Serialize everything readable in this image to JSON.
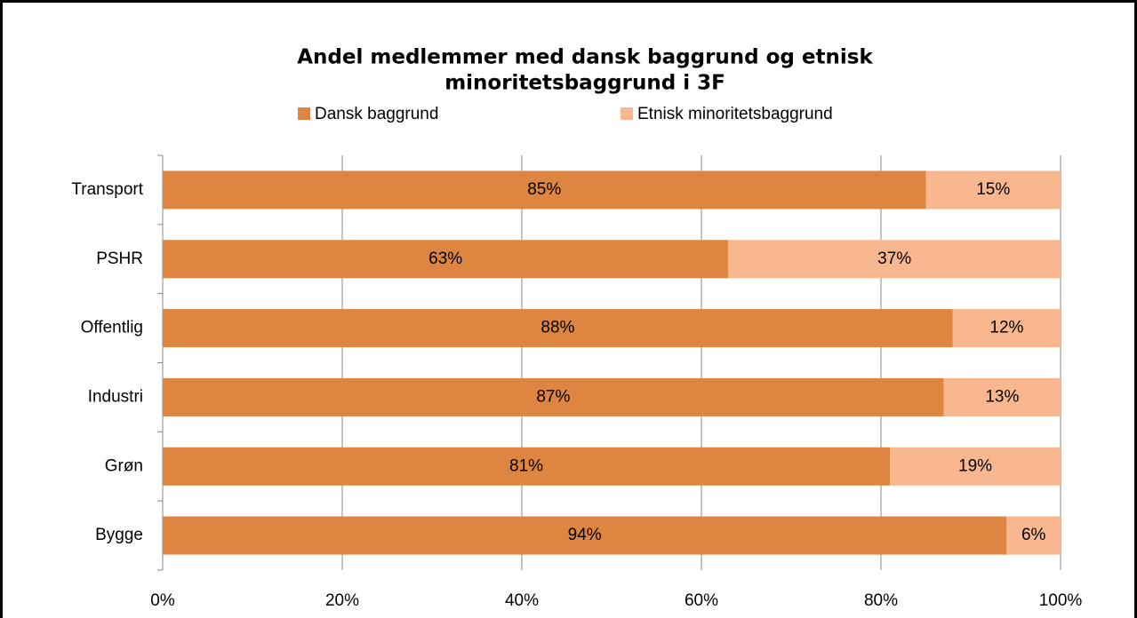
{
  "chart_data": {
    "type": "bar",
    "orientation": "horizontal",
    "stacked": true,
    "title": [
      "Andel medlemmer med dansk baggrund og etnisk",
      "minoritetsbaggrund i 3F"
    ],
    "categories": [
      "Transport",
      "PSHR",
      "Offentlig",
      "Industri",
      "Grøn",
      "Bygge"
    ],
    "series": [
      {
        "name": "Dansk baggrund",
        "color": "#dd8541",
        "values": [
          85,
          63,
          88,
          87,
          81,
          94
        ],
        "value_labels": [
          "85%",
          "63%",
          "88%",
          "87%",
          "81%",
          "94%"
        ]
      },
      {
        "name": "Etnisk minoritetsbaggrund",
        "color": "#f8b78f",
        "values": [
          15,
          37,
          12,
          13,
          19,
          6
        ],
        "value_labels": [
          "15%",
          "37%",
          "12%",
          "13%",
          "19%",
          "6%"
        ]
      }
    ],
    "xlim": [
      0,
      100
    ],
    "xticks": [
      {
        "value": 0,
        "label": "0%"
      },
      {
        "value": 20,
        "label": "20%"
      },
      {
        "value": 40,
        "label": "40%"
      },
      {
        "value": 60,
        "label": "60%"
      },
      {
        "value": 80,
        "label": "80%"
      },
      {
        "value": 100,
        "label": "100%"
      }
    ],
    "grid": true,
    "legend": "top"
  }
}
